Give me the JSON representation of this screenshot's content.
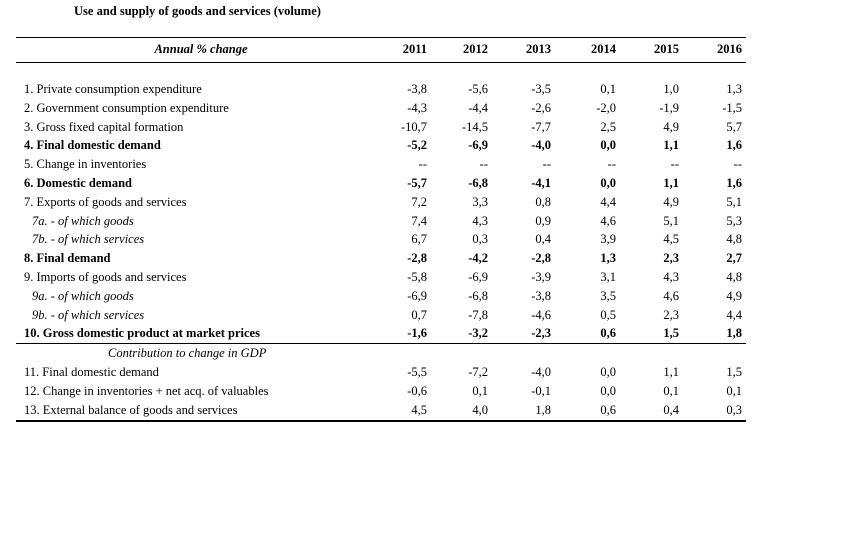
{
  "title": "Use and supply of goods and services (volume)",
  "header": {
    "label": "Annual % change",
    "years": [
      "2011",
      "2012",
      "2013",
      "2014",
      "2015",
      "2016"
    ]
  },
  "rows": [
    {
      "label": "1. Private consumption expenditure",
      "values": [
        "-3,8",
        "-5,6",
        "-3,5",
        "0,1",
        "1,0",
        "1,3"
      ]
    },
    {
      "label": "2. Government consumption expenditure",
      "values": [
        "-4,3",
        "-4,4",
        "-2,6",
        "-2,0",
        "-1,9",
        "-1,5"
      ]
    },
    {
      "label": "3. Gross fixed capital formation",
      "values": [
        "-10,7",
        "-14,5",
        "-7,7",
        "2,5",
        "4,9",
        "5,7"
      ]
    },
    {
      "label": "4. Final domestic demand",
      "values": [
        "-5,2",
        "-6,9",
        "-4,0",
        "0,0",
        "1,1",
        "1,6"
      ]
    },
    {
      "label": "5. Change in inventories",
      "values": [
        "--",
        "--",
        "--",
        "--",
        "--",
        "--"
      ]
    },
    {
      "label": "6. Domestic demand",
      "values": [
        "-5,7",
        "-6,8",
        "-4,1",
        "0,0",
        "1,1",
        "1,6"
      ]
    },
    {
      "label": "7. Exports of goods and services",
      "values": [
        "7,2",
        "3,3",
        "0,8",
        "4,4",
        "4,9",
        "5,1"
      ]
    },
    {
      "label": "7a.  - of which goods",
      "values": [
        "7,4",
        "4,3",
        "0,9",
        "4,6",
        "5,1",
        "5,3"
      ]
    },
    {
      "label": "7b.  - of which services",
      "values": [
        "6,7",
        "0,3",
        "0,4",
        "3,9",
        "4,5",
        "4,8"
      ]
    },
    {
      "label": "8. Final demand",
      "values": [
        "-2,8",
        "-4,2",
        "-2,8",
        "1,3",
        "2,3",
        "2,7"
      ]
    },
    {
      "label": "9. Imports of goods and services",
      "values": [
        "-5,8",
        "-6,9",
        "-3,9",
        "3,1",
        "4,3",
        "4,8"
      ]
    },
    {
      "label": "9a.  - of which goods",
      "values": [
        "-6,9",
        "-6,8",
        "-3,8",
        "3,5",
        "4,6",
        "4,9"
      ]
    },
    {
      "label": "9b.  - of which services",
      "values": [
        "0,7",
        "-7,8",
        "-4,6",
        "0,5",
        "2,3",
        "4,4"
      ]
    },
    {
      "label": "10. Gross domestic product at market prices",
      "values": [
        "-1,6",
        "-3,2",
        "-2,3",
        "0,6",
        "1,5",
        "1,8"
      ]
    },
    {
      "label": "Contribution to change in GDP"
    },
    {
      "label": "11. Final domestic demand",
      "values": [
        "-5,5",
        "-7,2",
        "-4,0",
        "0,0",
        "1,1",
        "1,5"
      ]
    },
    {
      "label": "12. Change in inventories + net acq. of valuables",
      "values": [
        "-0,6",
        "0,1",
        "-0,1",
        "0,0",
        "0,1",
        "0,1"
      ]
    },
    {
      "label": "13. External balance of goods and services",
      "values": [
        "4,5",
        "4,0",
        "1,8",
        "0,6",
        "0,4",
        "0,3"
      ]
    }
  ]
}
